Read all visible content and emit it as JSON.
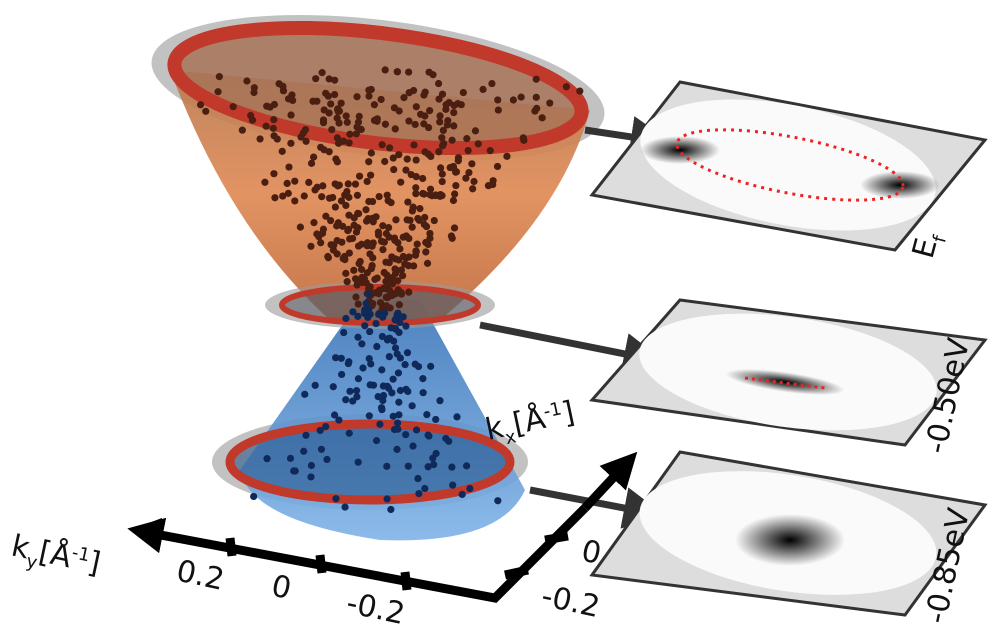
{
  "axes": {
    "ky": {
      "symbol": "k",
      "subscript": "y",
      "unit": "[Å",
      "exponent": "-1",
      "close": "]",
      "ticks": [
        "0.2",
        "0",
        "-0.2"
      ]
    },
    "kx": {
      "symbol": "k",
      "subscript": "x",
      "unit": "[Å",
      "exponent": "-1",
      "close": "]",
      "ticks": [
        "0",
        "-0.2"
      ]
    }
  },
  "panels": [
    {
      "label": "E",
      "subscript": "f"
    },
    {
      "label": "-0.50eV"
    },
    {
      "label": "-0.85eV"
    }
  ]
}
